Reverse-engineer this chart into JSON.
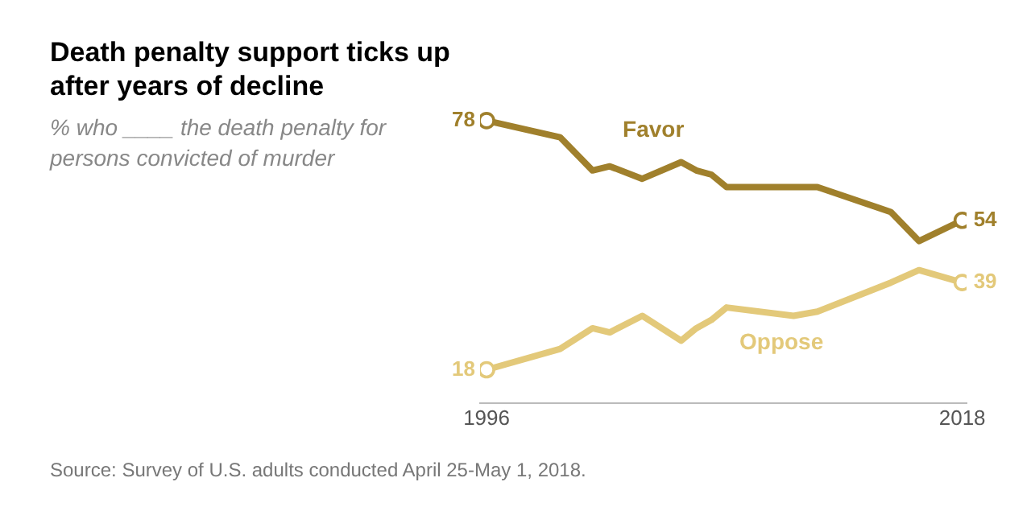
{
  "chart_data": {
    "type": "line",
    "title": "Death penalty support ticks up after years of decline",
    "subtitle": "% who ____ the death penalty for persons convicted of murder",
    "annotations": [
      "Source: Survey of U.S. adults conducted April 25-May 1, 2018."
    ],
    "x": [
      1996,
      1999.4,
      2000.9,
      2001.7,
      2003.2,
      2005,
      2005.7,
      2006.4,
      2007.1,
      2010.2,
      2011.3,
      2014.7,
      2016,
      2018
    ],
    "series": [
      {
        "name": "Favor",
        "color": "#a0802c",
        "values": [
          78,
          74,
          66,
          67,
          64,
          68,
          66,
          65,
          62,
          62,
          62,
          56,
          49,
          54
        ],
        "value_labels": [
          "78",
          null,
          null,
          null,
          null,
          null,
          null,
          null,
          null,
          null,
          null,
          null,
          null,
          "54"
        ]
      },
      {
        "name": "Oppose",
        "color": "#e3c97a",
        "values": [
          18,
          23,
          28,
          27,
          31,
          25,
          28,
          30,
          33,
          31,
          32,
          39,
          42,
          39
        ],
        "value_labels": [
          "18",
          null,
          null,
          null,
          null,
          null,
          null,
          null,
          null,
          null,
          null,
          null,
          null,
          "39"
        ]
      }
    ],
    "xlim": [
      1995.7,
      2018.2
    ],
    "xticks": [
      1996,
      2018
    ],
    "tick_labels": "x",
    "grid": false,
    "legend": false
  }
}
